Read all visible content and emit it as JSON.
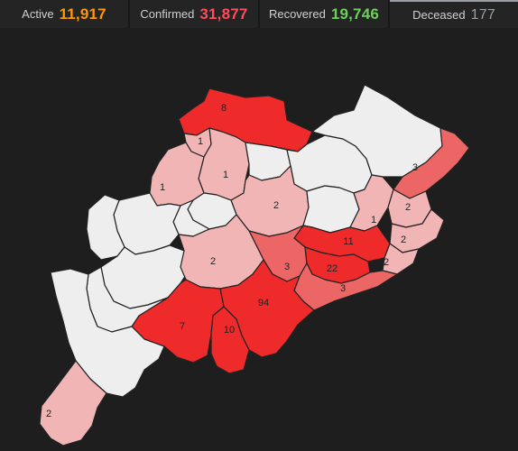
{
  "stats": [
    {
      "label": "Active",
      "value": "11,917",
      "color": "#ff9800"
    },
    {
      "label": "Confirmed",
      "value": "31,877",
      "color": "#ff4d5a"
    },
    {
      "label": "Recovered",
      "value": "19,746",
      "color": "#6bd15a"
    },
    {
      "label": "Deceased",
      "value": "177",
      "color": "#9aa0a6"
    }
  ],
  "selected_metric": "Deceased",
  "colors": {
    "zero": "#eeeeee",
    "low": "#f2b5b5",
    "mid": "#ec6666",
    "high": "#ee2a2a"
  },
  "map": {
    "districts": [
      {
        "id": "sundargarh",
        "count": "8",
        "level": "high"
      },
      {
        "id": "jharsuguda",
        "count": "1",
        "level": "low"
      },
      {
        "id": "sambalpur",
        "count": "1",
        "level": "low"
      },
      {
        "id": "bargarh",
        "count": "1",
        "level": "low"
      },
      {
        "id": "deogarh",
        "count": "",
        "level": "zero"
      },
      {
        "id": "keonjhar",
        "count": "",
        "level": "zero"
      },
      {
        "id": "mayurbhanj",
        "count": "",
        "level": "zero"
      },
      {
        "id": "balasore",
        "count": "3",
        "level": "mid"
      },
      {
        "id": "angul",
        "count": "2",
        "level": "low"
      },
      {
        "id": "dhenkanal",
        "count": "",
        "level": "zero"
      },
      {
        "id": "jajpur",
        "count": "1",
        "level": "low"
      },
      {
        "id": "bhadrak",
        "count": "2",
        "level": "low"
      },
      {
        "id": "kendrapara",
        "count": "2",
        "level": "low"
      },
      {
        "id": "cuttack",
        "count": "11",
        "level": "high"
      },
      {
        "id": "jagatsinghpur",
        "count": "2",
        "level": "low"
      },
      {
        "id": "nayagarh",
        "count": "3",
        "level": "mid"
      },
      {
        "id": "khordha",
        "count": "22",
        "level": "high"
      },
      {
        "id": "puri",
        "count": "3",
        "level": "mid"
      },
      {
        "id": "boudh",
        "count": "",
        "level": "zero"
      },
      {
        "id": "subarnapur",
        "count": "",
        "level": "zero"
      },
      {
        "id": "balangir",
        "count": "",
        "level": "zero"
      },
      {
        "id": "nuapada",
        "count": "",
        "level": "zero"
      },
      {
        "id": "kalahandi",
        "count": "",
        "level": "zero"
      },
      {
        "id": "kandhamal",
        "count": "2",
        "level": "low"
      },
      {
        "id": "ganjam",
        "count": "94",
        "level": "high"
      },
      {
        "id": "rayagada",
        "count": "7",
        "level": "high"
      },
      {
        "id": "gajapati",
        "count": "10",
        "level": "high"
      },
      {
        "id": "nabarangpur",
        "count": "",
        "level": "zero"
      },
      {
        "id": "koraput",
        "count": "",
        "level": "zero"
      },
      {
        "id": "malkangiri",
        "count": "2",
        "level": "low"
      }
    ]
  }
}
